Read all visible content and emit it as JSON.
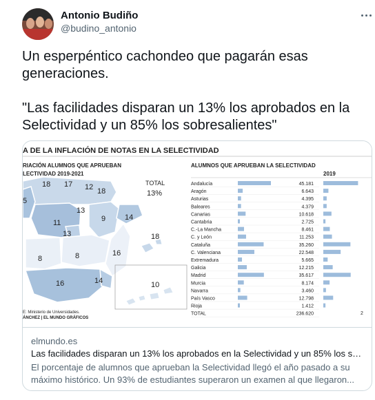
{
  "author": {
    "name": "Antonio Budiño",
    "handle": "@budino_antonio"
  },
  "tweet_text": "Un esperpéntico cachondeo que pagarán esas generaciones.\n\n\"Las facilidades disparan un 13% los aprobados en la Selectividad y un 85% los sobresalientes\"",
  "card": {
    "domain": "elmundo.es",
    "title": "Las facilidades disparan un 13% los aprobados en la Selectividad y un 85% los sobresalientes",
    "description": "El porcentaje de alumnos que aprueban la Selectividad llegó el año pasado a su máximo histórico. Un 93% de estudiantes superaron un examen al que llegaron..."
  },
  "infographic": {
    "main_title": "A DE LA INFLACIÓN DE NOTAS EN LA SELECTIVIDAD",
    "map_title_1": "RIACIÓN ALUMNOS QUE APRUEBAN",
    "map_title_2": "LECTIVIDAD 2019-2021",
    "total_label": "TOTAL",
    "total_value": "13%",
    "map_numbers": [
      "18",
      "17",
      "12",
      "18",
      "5",
      "13",
      "9",
      "14",
      "11",
      "13",
      "18",
      "16",
      "8",
      "8",
      "16",
      "14",
      "10"
    ],
    "source_1": "E: Ministerio de Universidades.",
    "source_2": "ÁNCHEZ | EL MUNDO GRÁFICOS",
    "table_title": "ALUMNOS QUE APRUEBAN LA SELECTIVIDAD",
    "year_label": "2019",
    "year_label_2": "2",
    "rows": [
      {
        "region": "Andalucía",
        "value": "45.181"
      },
      {
        "region": "Aragón",
        "value": "6.643"
      },
      {
        "region": "Asturias",
        "value": "4.395"
      },
      {
        "region": "Baleares",
        "value": "4.379"
      },
      {
        "region": "Canarias",
        "value": "10.618"
      },
      {
        "region": "Cantabria",
        "value": "2.725"
      },
      {
        "region": "C.-La Mancha",
        "value": "8.461"
      },
      {
        "region": "C. y León",
        "value": "11.253"
      },
      {
        "region": "Cataluña",
        "value": "35.260"
      },
      {
        "region": "C. Valenciana",
        "value": "22.548"
      },
      {
        "region": "Extremadura",
        "value": "5.665"
      },
      {
        "region": "Galicia",
        "value": "12.215"
      },
      {
        "region": "Madrid",
        "value": "35.617"
      },
      {
        "region": "Murcia",
        "value": "8.174"
      },
      {
        "region": "Navarra",
        "value": "3.460"
      },
      {
        "region": "País Vasco",
        "value": "12.798"
      },
      {
        "region": "Rioja",
        "value": "1.412"
      },
      {
        "region": "TOTAL",
        "value": "236.620"
      }
    ]
  }
}
